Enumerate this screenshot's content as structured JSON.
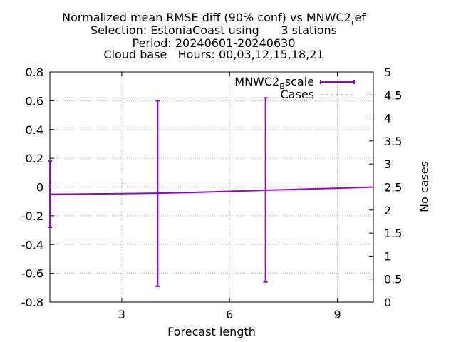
{
  "chart_data": {
    "type": "line",
    "title_lines": [
      "Normalized mean RMSE diff (90% conf) vs MNWC2_ref",
      "Selection: EstoniaCoast using      3 stations",
      "Period: 20240601-20240630",
      "Cloud base   Hours: 00,03,12,15,18,21"
    ],
    "title": {
      "line1_pre": "Normalized mean RMSE diff (90% conf) vs MNWC2",
      "line1_sub": "r",
      "line1_post": "ef",
      "line2": "Selection: EstoniaCoast using      3 stations",
      "line3": "Period: 20240601-20240630",
      "line4": "Cloud base   Hours: 00,03,12,15,18,21"
    },
    "xlabel": "Forecast length",
    "ylabel": "",
    "y2label": "No cases",
    "xlim": [
      1,
      10
    ],
    "ylim": [
      -0.8,
      0.8
    ],
    "y2lim": [
      0,
      5
    ],
    "xticks": [
      3,
      6,
      9
    ],
    "yticks": [
      -0.8,
      -0.6,
      -0.4,
      -0.2,
      0,
      0.2,
      0.4,
      0.6,
      0.8
    ],
    "ytick_labels": [
      "-0.8",
      "-0.6",
      "-0.4",
      "-0.2",
      "0",
      "0.2",
      "0.4",
      "0.6",
      "0.8"
    ],
    "y2ticks": [
      0,
      0.5,
      1,
      1.5,
      2,
      2.5,
      3,
      3.5,
      4,
      4.5,
      5
    ],
    "y2tick_labels": [
      "0",
      "0.5",
      "1",
      "1.5",
      "2",
      "2.5",
      "3",
      "3.5",
      "4",
      "4.5",
      "5"
    ],
    "grid": true,
    "legend_position": "top-right",
    "series": [
      {
        "name": "MNWC2_Bscale",
        "legend": {
          "pre": "MNWC2",
          "sub": "B",
          "post": "scale"
        },
        "color": "#9400d3",
        "style": "line-with-errorbars",
        "x": [
          1,
          2,
          3,
          4,
          5,
          6,
          7,
          8,
          9,
          10
        ],
        "y": [
          -0.05,
          -0.048,
          -0.046,
          -0.043,
          -0.037,
          -0.03,
          -0.022,
          -0.015,
          -0.008,
          0.0
        ],
        "errorbars": [
          {
            "x": 1,
            "low": -0.28,
            "high": 0.18
          },
          {
            "x": 4,
            "low": -0.69,
            "high": 0.6
          },
          {
            "x": 7,
            "low": -0.66,
            "high": 0.62
          }
        ]
      },
      {
        "name": "Cases",
        "legend": {
          "pre": "Cases",
          "sub": "",
          "post": ""
        },
        "color": "#a0a0a0",
        "style": "dashed",
        "axis": "y2",
        "x": [],
        "y": []
      }
    ]
  }
}
